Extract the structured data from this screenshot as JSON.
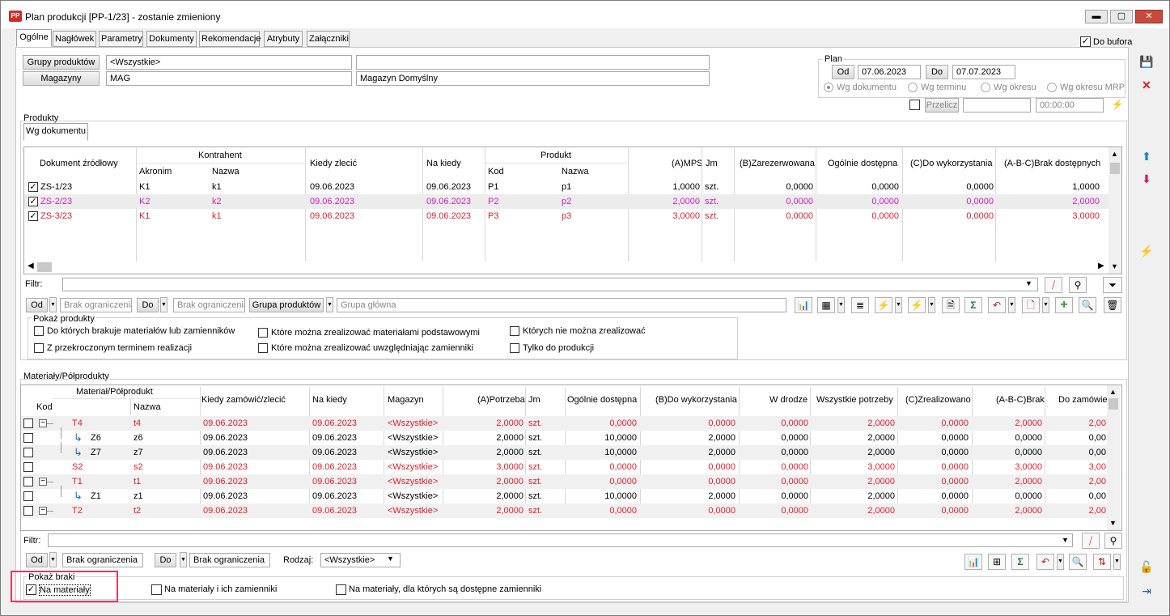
{
  "window": {
    "title": "Plan produkcji [PP-1/23] - zostanie zmieniony",
    "app_icon": "PP"
  },
  "tabs": [
    "Ogólne",
    "Nagłówek",
    "Parametry",
    "Dokumenty",
    "Rekomendacje",
    "Atrybuty",
    "Załączniki"
  ],
  "do_bufora": "Do bufora",
  "header": {
    "grupy_btn": "Grupy produktów",
    "grupy_value": "<Wszystkie>",
    "magazyny_btn": "Magazyny",
    "magazyny_code": "MAG",
    "magazyny_name": "Magazyn Domyślny"
  },
  "plan": {
    "title": "Plan",
    "od": "Od",
    "od_date": "07.06.2023",
    "do": "Do",
    "do_date": "07.07.2023",
    "radios": [
      "Wg dokumentu",
      "Wg terminu",
      "Wg okresu",
      "Wg okresu MRP"
    ],
    "przelicz": "Przelicz",
    "time": "00:00:00"
  },
  "produkty": {
    "title": "Produkty",
    "subtab": "Wg dokumentu",
    "headers": {
      "doc": "Dokument źródłowy",
      "kontrahent": "Kontrahent",
      "akronim": "Akronim",
      "nazwa": "Nazwa",
      "kiedy": "Kiedy zlecić",
      "na_kiedy": "Na kiedy",
      "produkt": "Produkt",
      "kod": "Kod",
      "pnazwa": "Nazwa",
      "mps": "(A)MPS",
      "jm": "Jm",
      "zar": "(B)Zarezerwowana",
      "ogol": "Ogólnie dostępna",
      "dowyk": "(C)Do wykorzystania",
      "brak": "(A-B-C)Brak dostępnych"
    },
    "rows": [
      {
        "doc": "ZS-1/23",
        "akr": "K1",
        "naz": "k1",
        "kiedy": "09.06.2023",
        "nak": "09.06.2023",
        "kod": "P1",
        "pn": "p1",
        "mps": "1,0000",
        "jm": "szt.",
        "zar": "0,0000",
        "ogol": "0,0000",
        "dowyk": "0,0000",
        "brak": "1,0000",
        "color": "black"
      },
      {
        "doc": "ZS-2/23",
        "akr": "K2",
        "naz": "k2",
        "kiedy": "09.06.2023",
        "nak": "09.06.2023",
        "kod": "P2",
        "pn": "p2",
        "mps": "2,0000",
        "jm": "szt.",
        "zar": "0,0000",
        "ogol": "0,0000",
        "dowyk": "0,0000",
        "brak": "2,0000",
        "color": "mag"
      },
      {
        "doc": "ZS-3/23",
        "akr": "K1",
        "naz": "k1",
        "kiedy": "09.06.2023",
        "nak": "09.06.2023",
        "kod": "P3",
        "pn": "p3",
        "mps": "3,0000",
        "jm": "szt.",
        "zar": "0,0000",
        "ogol": "0,0000",
        "dowyk": "0,0000",
        "brak": "3,0000",
        "color": "red"
      }
    ],
    "filtr": "Filtr:",
    "od": "Od",
    "od_ph": "Brak ograniczenia",
    "do": "Do",
    "do_ph": "Brak ograniczenia",
    "grupa_btn": "Grupa produktów",
    "grupa_ph": "Grupa główna",
    "pokaz_title": "Pokaż produkty",
    "pokaz": [
      "Do których brakuje materiałów lub zamienników",
      "Z przekroczonym terminem realizacji",
      "Które można zrealizować materiałami podstawowymi",
      "Które można zrealizować uwzględniając zamienniki",
      "Których nie można zrealizować",
      "Tylko do produkcji"
    ]
  },
  "materialy": {
    "title": "Materiały/Półprodukty",
    "headers": {
      "mat": "Materiał/Półprodukt",
      "kod": "Kod",
      "nazwa": "Nazwa",
      "kiedy": "Kiedy zamówić/zlecić",
      "nak": "Na kiedy",
      "mag": "Magazyn",
      "potrz": "(A)Potrzeba",
      "jm": "Jm",
      "ogol": "Ogólnie dostępna",
      "dowyk": "(B)Do wykorzystania",
      "wdrodze": "W drodze",
      "wszyst": "Wszystkie potrzeby",
      "zreal": "(C)Zrealizowano",
      "brak": "(A-B-C)Brak",
      "dozam": "Do zamówie"
    },
    "rows": [
      {
        "kod": "T4",
        "naz": "t4",
        "kiedy": "09.06.2023",
        "nak": "09.06.2023",
        "mag": "<Wszystkie>",
        "potrz": "2,0000",
        "jm": "szt.",
        "ogol": "0,0000",
        "dowyk": "0,0000",
        "wdr": "0,0000",
        "wsz": "2,0000",
        "zr": "0,0000",
        "brak": "2,0000",
        "dz": "2,00",
        "color": "red",
        "level": 0,
        "tree": "minus"
      },
      {
        "kod": "Z6",
        "naz": "z6",
        "kiedy": "09.06.2023",
        "nak": "09.06.2023",
        "mag": "<Wszystkie>",
        "potrz": "2,0000",
        "jm": "szt.",
        "ogol": "10,0000",
        "dowyk": "2,0000",
        "wdr": "0,0000",
        "wsz": "2,0000",
        "zr": "0,0000",
        "brak": "0,0000",
        "dz": "0,00",
        "color": "black",
        "level": 1,
        "tree": "child"
      },
      {
        "kod": "Z7",
        "naz": "z7",
        "kiedy": "09.06.2023",
        "nak": "09.06.2023",
        "mag": "<Wszystkie>",
        "potrz": "2,0000",
        "jm": "szt.",
        "ogol": "10,0000",
        "dowyk": "2,0000",
        "wdr": "0,0000",
        "wsz": "2,0000",
        "zr": "0,0000",
        "brak": "0,0000",
        "dz": "0,00",
        "color": "black",
        "level": 1,
        "tree": "child"
      },
      {
        "kod": "S2",
        "naz": "s2",
        "kiedy": "09.06.2023",
        "nak": "09.06.2023",
        "mag": "<Wszystkie>",
        "potrz": "3,0000",
        "jm": "szt.",
        "ogol": "0,0000",
        "dowyk": "0,0000",
        "wdr": "0,0000",
        "wsz": "3,0000",
        "zr": "0,0000",
        "brak": "3,0000",
        "dz": "3,00",
        "color": "red",
        "level": 0,
        "tree": "none"
      },
      {
        "kod": "T1",
        "naz": "t1",
        "kiedy": "09.06.2023",
        "nak": "09.06.2023",
        "mag": "<Wszystkie>",
        "potrz": "2,0000",
        "jm": "szt.",
        "ogol": "0,0000",
        "dowyk": "0,0000",
        "wdr": "0,0000",
        "wsz": "2,0000",
        "zr": "0,0000",
        "brak": "2,0000",
        "dz": "2,00",
        "color": "red",
        "level": 0,
        "tree": "minus"
      },
      {
        "kod": "Z1",
        "naz": "z1",
        "kiedy": "09.06.2023",
        "nak": "09.06.2023",
        "mag": "<Wszystkie>",
        "potrz": "2,0000",
        "jm": "szt.",
        "ogol": "10,0000",
        "dowyk": "2,0000",
        "wdr": "0,0000",
        "wsz": "2,0000",
        "zr": "0,0000",
        "brak": "0,0000",
        "dz": "0,00",
        "color": "black",
        "level": 1,
        "tree": "child"
      },
      {
        "kod": "T2",
        "naz": "t2",
        "kiedy": "09.06.2023",
        "nak": "09.06.2023",
        "mag": "<Wszystkie>",
        "potrz": "2,0000",
        "jm": "szt.",
        "ogol": "0,0000",
        "dowyk": "0,0000",
        "wdr": "0,0000",
        "wsz": "2,0000",
        "zr": "0,0000",
        "brak": "2,0000",
        "dz": "2,00",
        "color": "red",
        "level": 0,
        "tree": "minus"
      }
    ],
    "filtr": "Filtr:",
    "od": "Od",
    "od_val": "Brak ograniczenia",
    "do": "Do",
    "do_val": "Brak ograniczenia",
    "rodzaj_label": "Rodzaj:",
    "rodzaj_val": "<Wszystkie>",
    "braki_title": "Pokaż braki",
    "braki": [
      "Na materiały",
      "Na materiały i ich zamienniki",
      "Na materiały, dla których są dostępne zamienniki"
    ]
  },
  "colors": {
    "red": "#e0202c",
    "magenta": "#d020c0",
    "highlight": "#e03a6a"
  }
}
